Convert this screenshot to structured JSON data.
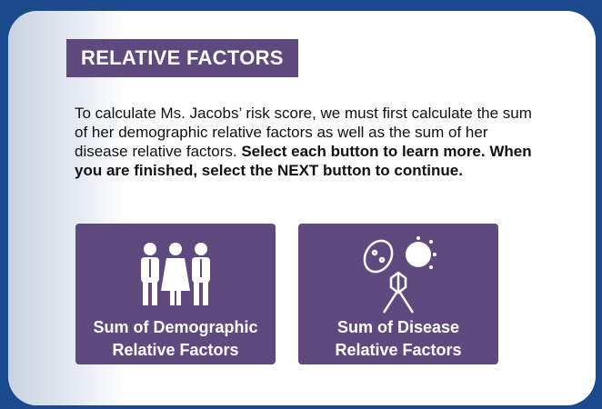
{
  "header": {
    "title": "RELATIVE FACTORS"
  },
  "instructions": {
    "text": "To calculate Ms. Jacobs’ risk score, we must first calculate the sum of her demographic relative factors as well as the sum of her disease relative factors.",
    "emphasis": "Select each button to learn more. When you are finished, select the NEXT button to continue."
  },
  "buttons": [
    {
      "label_lines": [
        "Sum of Demographic",
        "Relative Factors"
      ]
    },
    {
      "label_lines": [
        "Sum of Disease",
        "Relative Factors"
      ]
    }
  ]
}
